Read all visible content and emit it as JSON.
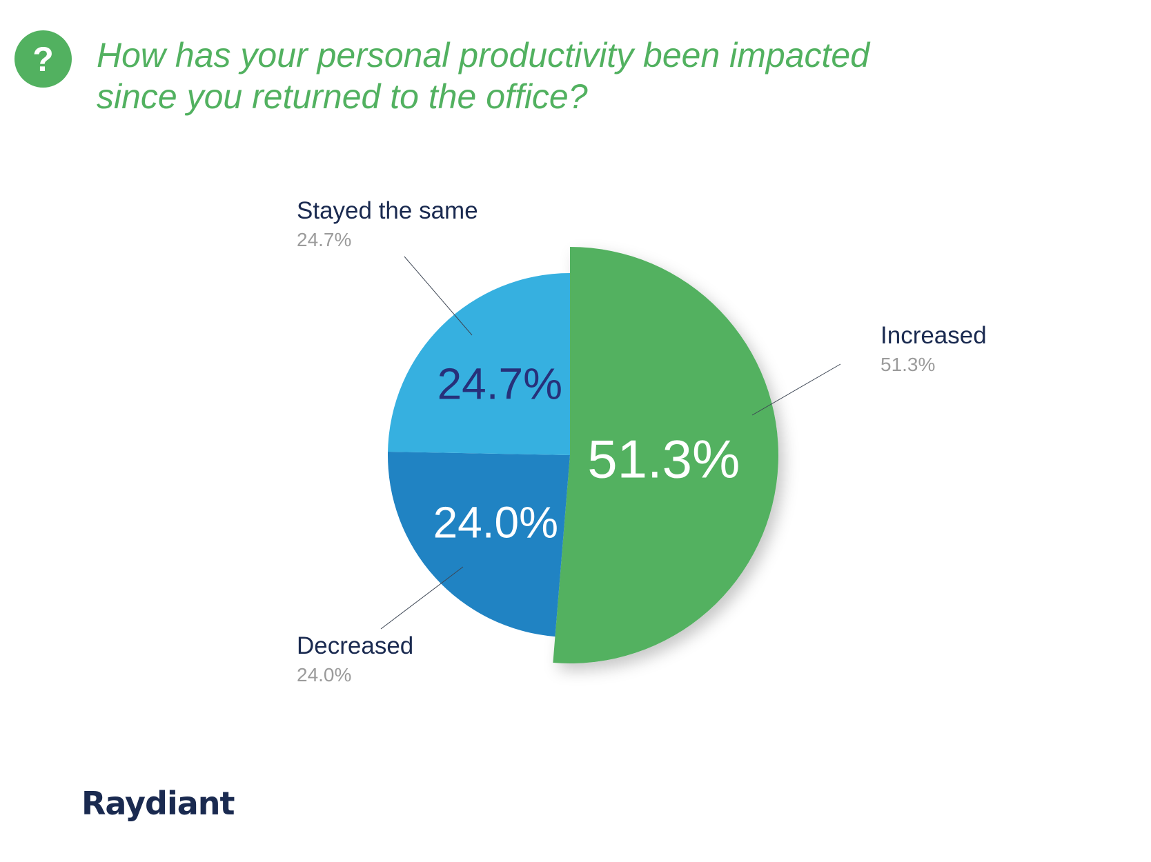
{
  "header": {
    "icon": "question-mark-icon",
    "icon_glyph": "?",
    "title_line1": "How has your personal productivity been impacted",
    "title_line2": "since you returned to the office?"
  },
  "colors": {
    "accent_green": "#52b160",
    "light_blue": "#36b0e0",
    "mid_blue": "#2083c3",
    "dark_navy": "#1a2a50",
    "callout_value": "#9b9b9b",
    "inner_label_dark": "#27307a",
    "inner_label_light": "#ffffff",
    "leader_line": "#3d4654"
  },
  "chart_data": {
    "type": "pie",
    "unit": "%",
    "slices": [
      {
        "label": "Increased",
        "value": 51.3,
        "value_text": "51.3%",
        "color": "#52b160",
        "exploded": true
      },
      {
        "label": "Decreased",
        "value": 24.0,
        "value_text": "24.0%",
        "color": "#2083c3",
        "exploded": false
      },
      {
        "label": "Stayed the same",
        "value": 24.7,
        "value_text": "24.7%",
        "color": "#36b0e0",
        "exploded": false
      }
    ]
  },
  "footer": {
    "brand": "Raydiant",
    "brand_logo": "raydiant-logo"
  }
}
